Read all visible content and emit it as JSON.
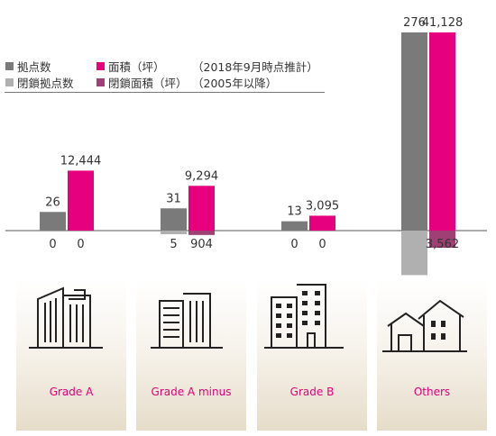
{
  "legend": {
    "items": [
      {
        "label": "拠点数",
        "color": "#7a7a7a"
      },
      {
        "label": "面積（坪）",
        "color": "#e6007e"
      },
      {
        "label": "閉鎖拠点数",
        "color": "#b0b0b0"
      },
      {
        "label": "閉鎖面積（坪）",
        "color": "#a03f73"
      }
    ],
    "note_current": "（2018年9月時点推計）",
    "note_closed": "（2005年以降）"
  },
  "chart_data": {
    "type": "bar",
    "categories": [
      "Grade A",
      "Grade A minus",
      "Grade B",
      "Others"
    ],
    "series": [
      {
        "name": "拠点数",
        "values": [
          26,
          31,
          13,
          276
        ],
        "labels": [
          "26",
          "31",
          "13",
          "276"
        ],
        "color": "#7a7a7a",
        "axis": "count",
        "direction": "up"
      },
      {
        "name": "面積（坪）",
        "values": [
          12444,
          9294,
          3095,
          41128
        ],
        "labels": [
          "12,444",
          "9,294",
          "3,095",
          "41,128"
        ],
        "color": "#e6007e",
        "axis": "area",
        "direction": "up"
      },
      {
        "name": "閉鎖拠点数",
        "values": [
          0,
          5,
          0,
          62
        ],
        "labels": [
          "0",
          "5",
          "0",
          "62"
        ],
        "color": "#b0b0b0",
        "axis": "count",
        "direction": "down"
      },
      {
        "name": "閉鎖面積（坪）",
        "values": [
          0,
          904,
          0,
          3562
        ],
        "labels": [
          "0",
          "904",
          "0",
          "3,562"
        ],
        "color": "#a03f73",
        "axis": "area",
        "direction": "down"
      }
    ],
    "grid": false,
    "legend_position": "top-left"
  },
  "cards": [
    {
      "label": "Grade A",
      "icon": "office-tower-icon"
    },
    {
      "label": "Grade A minus",
      "icon": "office-building-icon"
    },
    {
      "label": "Grade B",
      "icon": "mid-rise-building-icon"
    },
    {
      "label": "Others",
      "icon": "house-icon"
    }
  ]
}
